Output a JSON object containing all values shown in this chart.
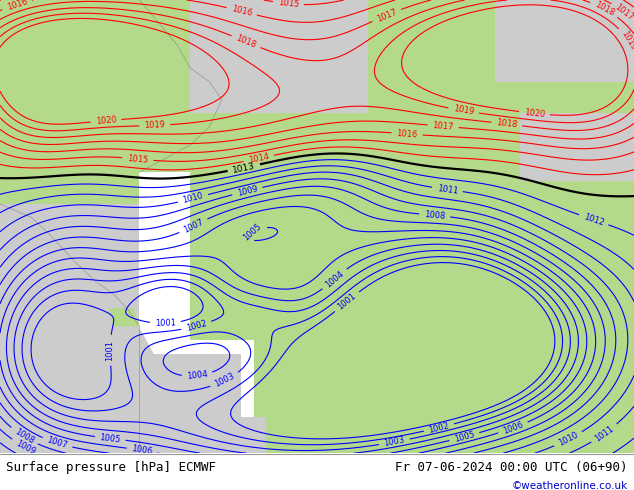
{
  "title_left": "Surface pressure [hPa] ECMWF",
  "title_right": "Fr 07-06-2024 00:00 UTC (06+90)",
  "copyright": "©weatheronline.co.uk",
  "copyright_color": "#0000cc",
  "bg_color": "#ffffff",
  "fig_width": 6.34,
  "fig_height": 4.9,
  "dpi": 100,
  "land_green": "#b5d98a",
  "sea_gray": "#cccccc",
  "footer_font_size": 9,
  "contour_black_levels": [
    1013
  ],
  "contour_red_levels": [
    1014,
    1015,
    1016,
    1017,
    1018,
    1019,
    1020
  ],
  "contour_blue_levels": [
    1001,
    1002,
    1003,
    1004,
    1005,
    1006,
    1007,
    1008,
    1009,
    1010,
    1011,
    1012
  ]
}
